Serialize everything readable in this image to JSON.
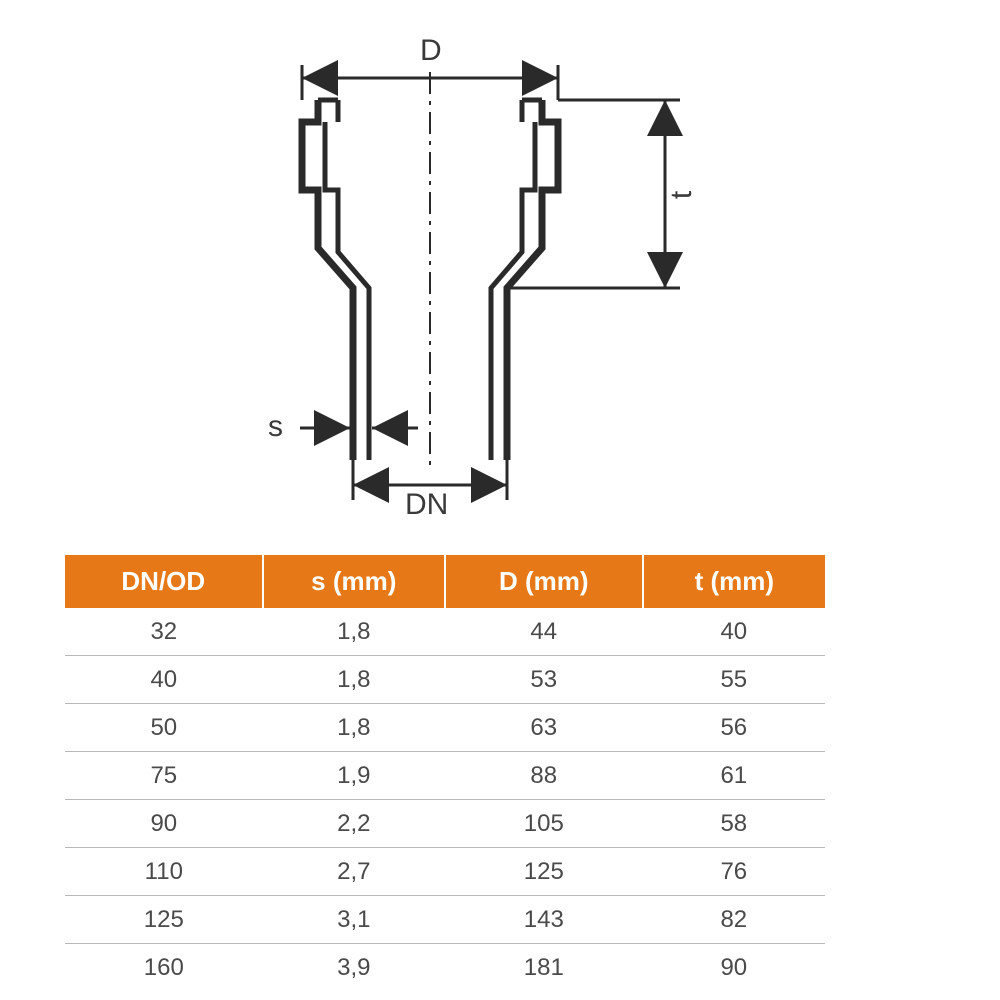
{
  "diagram": {
    "labels": {
      "D": "D",
      "t": "t",
      "s": "s",
      "DN": "DN"
    },
    "colors": {
      "stroke": "#2a2a2a",
      "centerline": "#2a2a2a",
      "label": "#3a3a3a"
    }
  },
  "table": {
    "header_bg": "#e77817",
    "header_fg": "#ffffff",
    "row_fg": "#4a4a4a",
    "row_border": "#b8b8b8",
    "columns": [
      "DN/OD",
      "s (mm)",
      "D (mm)",
      "t (mm)"
    ],
    "col_widths": [
      "26%",
      "24%",
      "26%",
      "24%"
    ],
    "rows": [
      [
        "32",
        "1,8",
        "44",
        "40"
      ],
      [
        "40",
        "1,8",
        "53",
        "55"
      ],
      [
        "50",
        "1,8",
        "63",
        "56"
      ],
      [
        "75",
        "1,9",
        "88",
        "61"
      ],
      [
        "90",
        "2,2",
        "105",
        "58"
      ],
      [
        "110",
        "2,7",
        "125",
        "76"
      ],
      [
        "125",
        "3,1",
        "143",
        "82"
      ],
      [
        "160",
        "3,9",
        "181",
        "90"
      ]
    ]
  }
}
